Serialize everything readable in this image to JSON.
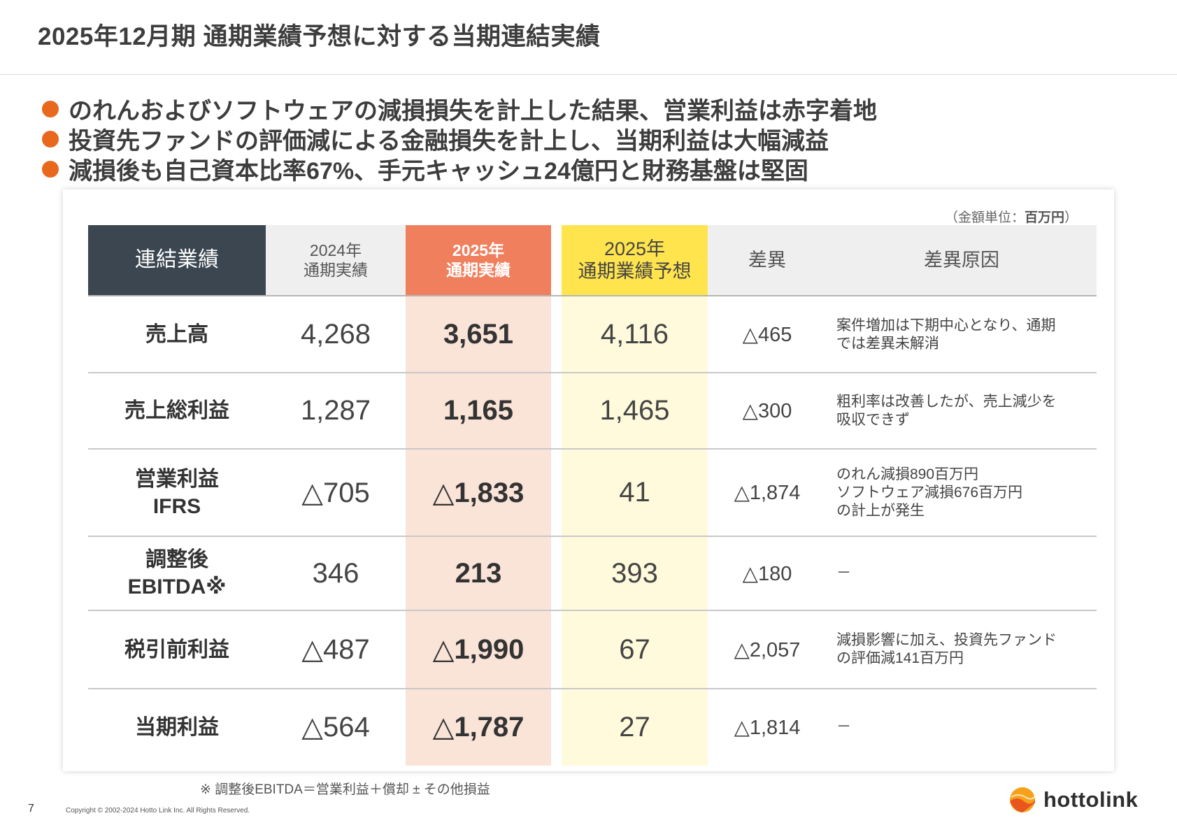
{
  "title": "2025年12月期 通期業績予想に対する当期連結実績",
  "bullets": [
    "のれんおよびソフトウェアの減損損失を計上した結果、営業利益は赤字着地",
    "投資先ファンドの評価減による金融損失を計上し、当期利益は大幅減益",
    "減損後も自己資本比率67%、手元キャッシュ24億円と財務基盤は堅固"
  ],
  "unit": {
    "prefix": "（金額単位：",
    "value": "百万円",
    "suffix": "）"
  },
  "table": {
    "headers": {
      "label": "連結業績",
      "prev": "2024年\n通期実績",
      "actual": "2025年\n通期実績",
      "forecast": "2025年\n通期業績予想",
      "diff": "差異",
      "reason": "差異原因"
    },
    "rows": [
      {
        "label": "売上高",
        "prev": "4,268",
        "actual": "3,651",
        "forecast": "4,116",
        "diff": "△465",
        "reason": "案件増加は下期中心となり、通期\nでは差異未解消"
      },
      {
        "label": "売上総利益",
        "prev": "1,287",
        "actual": "1,165",
        "forecast": "1,465",
        "diff": "△300",
        "reason": "粗利率は改善したが、売上減少を\n吸収できず"
      },
      {
        "label": "営業利益\nIFRS",
        "prev": "△705",
        "actual": "△1,833",
        "forecast": "41",
        "diff": "△1,874",
        "reason": "のれん減損890百万円\nソフトウェア減損676百万円\nの計上が発生"
      },
      {
        "label": "調整後\nEBITDA※",
        "prev": "346",
        "actual": "213",
        "forecast": "393",
        "diff": "△180",
        "reason": "－"
      },
      {
        "label": "税引前利益",
        "prev": "△487",
        "actual": "△1,990",
        "forecast": "67",
        "diff": "△2,057",
        "reason": "減損影響に加え、投資先ファンド\nの評価減141百万円"
      },
      {
        "label": "当期利益",
        "prev": "△564",
        "actual": "△1,787",
        "forecast": "27",
        "diff": "△1,814",
        "reason": "－"
      }
    ]
  },
  "footnote": "※ 調整後EBITDA＝営業利益＋償却 ± その他損益",
  "page_number": "7",
  "copyright": "Copyright © 2002-2024 Hotto Link Inc. All Rights Reserved.",
  "logo_text": "hottolink",
  "colors": {
    "accent_orange": "#e8691e",
    "actual_header": "#f07f5e",
    "actual_body": "#fae3d7",
    "forecast_header": "#ffe44d",
    "forecast_body": "#fffadc",
    "label_header": "#3b4650",
    "grey_header": "#efefef"
  }
}
